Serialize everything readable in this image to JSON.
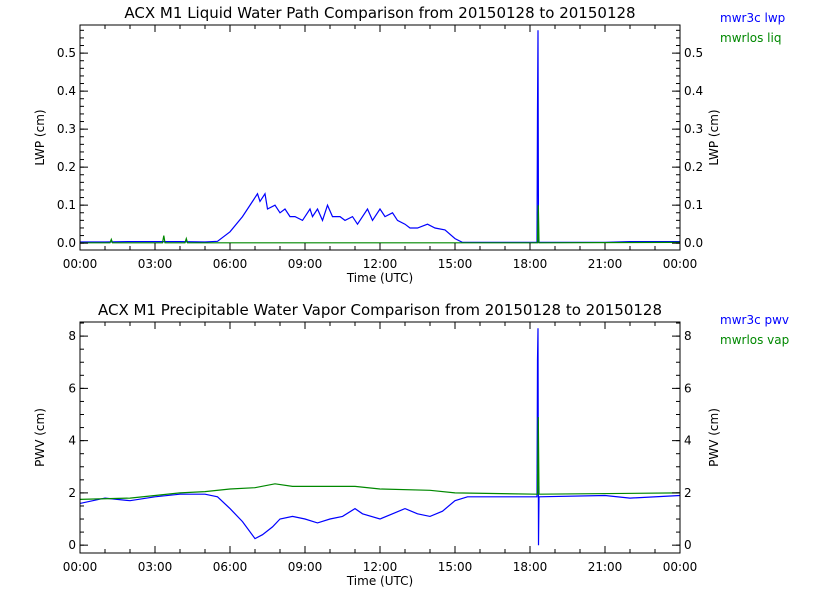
{
  "chart_data": [
    {
      "type": "line",
      "title": "ACX M1 Liquid Water Path Comparison from 20150128 to 20150128",
      "xlabel": "Time (UTC)",
      "ylabel": "LWP (cm)",
      "ylabel_right": "LWP (cm)",
      "xlim": [
        0,
        24
      ],
      "ylim": [
        -0.018,
        0.574
      ],
      "xticks": [
        0,
        3,
        6,
        9,
        12,
        15,
        18,
        21,
        24
      ],
      "xtick_labels": [
        "00:00",
        "03:00",
        "06:00",
        "09:00",
        "12:00",
        "15:00",
        "18:00",
        "21:00",
        "00:00"
      ],
      "yticks": [
        0,
        0.1,
        0.2,
        0.3,
        0.4,
        0.5
      ],
      "ytick_labels": [
        "0.0",
        "0.1",
        "0.2",
        "0.3",
        "0.4",
        "0.5"
      ],
      "yminor": 0.02,
      "grid": false,
      "legend_position": "outside-right",
      "series": [
        {
          "name": "mwr3c lwp",
          "color": "#0000ff",
          "points": [
            [
              0,
              0.003
            ],
            [
              1,
              0.003
            ],
            [
              2,
              0.004
            ],
            [
              3,
              0.004
            ],
            [
              4,
              0.004
            ],
            [
              5,
              0.003
            ],
            [
              5.5,
              0.005
            ],
            [
              6,
              0.03
            ],
            [
              6.5,
              0.07
            ],
            [
              7,
              0.12
            ],
            [
              7.1,
              0.13
            ],
            [
              7.2,
              0.11
            ],
            [
              7.4,
              0.13
            ],
            [
              7.5,
              0.09
            ],
            [
              7.8,
              0.1
            ],
            [
              8.0,
              0.08
            ],
            [
              8.2,
              0.09
            ],
            [
              8.4,
              0.07
            ],
            [
              8.6,
              0.07
            ],
            [
              8.9,
              0.06
            ],
            [
              9.2,
              0.09
            ],
            [
              9.3,
              0.07
            ],
            [
              9.5,
              0.09
            ],
            [
              9.7,
              0.06
            ],
            [
              9.9,
              0.1
            ],
            [
              10.1,
              0.07
            ],
            [
              10.4,
              0.07
            ],
            [
              10.6,
              0.06
            ],
            [
              10.9,
              0.07
            ],
            [
              11.1,
              0.05
            ],
            [
              11.5,
              0.09
            ],
            [
              11.7,
              0.06
            ],
            [
              12.0,
              0.09
            ],
            [
              12.2,
              0.07
            ],
            [
              12.5,
              0.08
            ],
            [
              12.7,
              0.06
            ],
            [
              13.0,
              0.05
            ],
            [
              13.2,
              0.04
            ],
            [
              13.5,
              0.04
            ],
            [
              13.9,
              0.05
            ],
            [
              14.2,
              0.04
            ],
            [
              14.6,
              0.035
            ],
            [
              15.0,
              0.012
            ],
            [
              15.3,
              0.002
            ],
            [
              17.5,
              0.002
            ],
            [
              18.28,
              0.002
            ],
            [
              18.3,
              0.35
            ],
            [
              18.32,
              0.56
            ],
            [
              18.34,
              0.002
            ],
            [
              21,
              0.002
            ],
            [
              22,
              0.004
            ],
            [
              23,
              0.004
            ],
            [
              24,
              0.004
            ]
          ]
        },
        {
          "name": "mwrlos liq",
          "color": "#008800",
          "points": [
            [
              0,
              0.001
            ],
            [
              1.2,
              0.001
            ],
            [
              1.25,
              0.01
            ],
            [
              1.3,
              0.001
            ],
            [
              3.3,
              0.001
            ],
            [
              3.35,
              0.02
            ],
            [
              3.4,
              0.001
            ],
            [
              4.2,
              0.001
            ],
            [
              4.25,
              0.012
            ],
            [
              4.3,
              0.001
            ],
            [
              18.3,
              0.001
            ],
            [
              18.33,
              0.1
            ],
            [
              18.36,
              0.001
            ],
            [
              24,
              0.002
            ]
          ]
        }
      ]
    },
    {
      "type": "line",
      "title": "ACX M1 Precipitable Water Vapor Comparison from 20150128 to 20150128",
      "xlabel": "Time (UTC)",
      "ylabel": "PWV (cm)",
      "ylabel_right": "PWV (cm)",
      "xlim": [
        0,
        24
      ],
      "ylim": [
        -0.3,
        8.54
      ],
      "xticks": [
        0,
        3,
        6,
        9,
        12,
        15,
        18,
        21,
        24
      ],
      "xtick_labels": [
        "00:00",
        "03:00",
        "06:00",
        "09:00",
        "12:00",
        "15:00",
        "18:00",
        "21:00",
        "00:00"
      ],
      "yticks": [
        0,
        2,
        4,
        6,
        8
      ],
      "ytick_labels": [
        "0",
        "2",
        "4",
        "6",
        "8"
      ],
      "yminor": 0.5,
      "grid": false,
      "legend_position": "outside-right",
      "series": [
        {
          "name": "mwr3c pwv",
          "color": "#0000ff",
          "points": [
            [
              0,
              1.6
            ],
            [
              1,
              1.8
            ],
            [
              2,
              1.7
            ],
            [
              3,
              1.85
            ],
            [
              4,
              1.95
            ],
            [
              5,
              1.95
            ],
            [
              5.5,
              1.85
            ],
            [
              6,
              1.4
            ],
            [
              6.5,
              0.9
            ],
            [
              7,
              0.25
            ],
            [
              7.3,
              0.4
            ],
            [
              7.7,
              0.7
            ],
            [
              8,
              1.0
            ],
            [
              8.5,
              1.1
            ],
            [
              9,
              1.0
            ],
            [
              9.5,
              0.85
            ],
            [
              10,
              1.0
            ],
            [
              10.5,
              1.1
            ],
            [
              11,
              1.4
            ],
            [
              11.3,
              1.2
            ],
            [
              12,
              1.0
            ],
            [
              12.5,
              1.2
            ],
            [
              13,
              1.4
            ],
            [
              13.5,
              1.2
            ],
            [
              14,
              1.1
            ],
            [
              14.5,
              1.3
            ],
            [
              15,
              1.7
            ],
            [
              15.5,
              1.85
            ],
            [
              18.28,
              1.85
            ],
            [
              18.3,
              7.1
            ],
            [
              18.32,
              8.3
            ],
            [
              18.34,
              0
            ],
            [
              18.36,
              1.85
            ],
            [
              21,
              1.9
            ],
            [
              22,
              1.8
            ],
            [
              24,
              1.9
            ]
          ]
        },
        {
          "name": "mwrlos vap",
          "color": "#008800",
          "points": [
            [
              0,
              1.75
            ],
            [
              2,
              1.8
            ],
            [
              3,
              1.9
            ],
            [
              4,
              2.0
            ],
            [
              5,
              2.05
            ],
            [
              6,
              2.15
            ],
            [
              7,
              2.2
            ],
            [
              7.8,
              2.35
            ],
            [
              8.5,
              2.25
            ],
            [
              10,
              2.25
            ],
            [
              11,
              2.25
            ],
            [
              12,
              2.15
            ],
            [
              14,
              2.1
            ],
            [
              15,
              2.0
            ],
            [
              18.3,
              1.95
            ],
            [
              18.33,
              4.9
            ],
            [
              18.36,
              1.95
            ],
            [
              24,
              2.0
            ]
          ]
        }
      ]
    }
  ]
}
